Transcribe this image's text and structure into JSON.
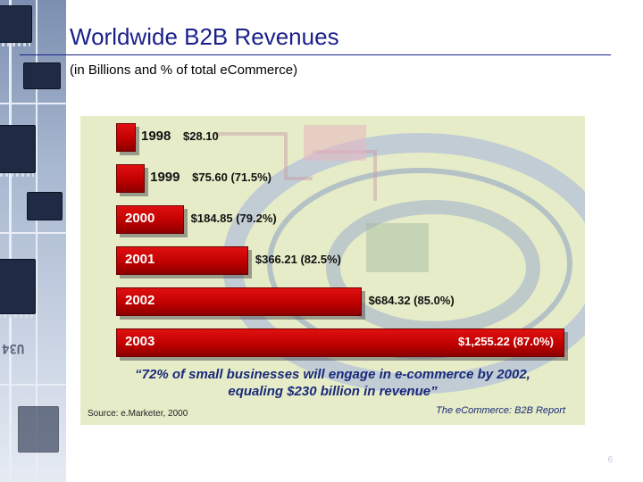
{
  "slide": {
    "title": "Worldwide B2B Revenues",
    "subtitle": "(in Billions and % of total eCommerce)",
    "slide_number": "6"
  },
  "chart_data": {
    "type": "bar",
    "orientation": "horizontal",
    "categories": [
      "1998",
      "1999",
      "2000",
      "2001",
      "2002",
      "2003"
    ],
    "values": [
      28.1,
      75.6,
      184.85,
      366.21,
      684.32,
      1255.22
    ],
    "value_labels": [
      "$28.10",
      "$75.60 (71.5%)",
      "$184.85 (79.2%)",
      "$366.21 (82.5%)",
      "$684.32 (85.0%)",
      "$1,255.22 (87.0%)"
    ],
    "percent_of_total_ecommerce": [
      null,
      71.5,
      79.2,
      82.5,
      85.0,
      87.0
    ],
    "bar_color": "#c00000",
    "quote_line1": "“72% of small businesses will engage in e-commerce by 2002,",
    "quote_line2": "equaling $230 billion in revenue”",
    "source": "Source: e.Marketer, 2000",
    "report": "The eCommerce: B2B Report",
    "grid": false
  },
  "colors": {
    "title": "#1a1f8a",
    "panel_background": "#e6ecc8",
    "quote": "#1a2a7a"
  }
}
